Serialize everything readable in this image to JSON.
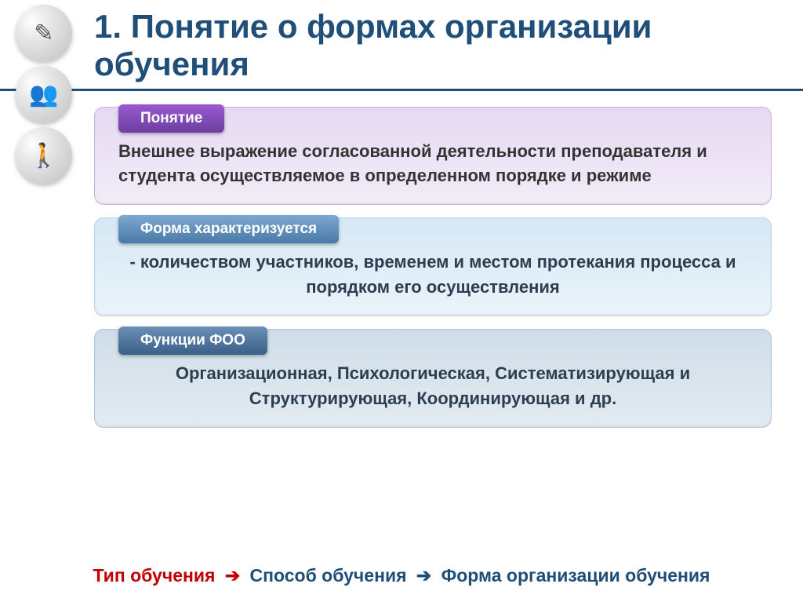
{
  "colors": {
    "title": "#1f4e79",
    "title_underline": "#1f4e79",
    "block1_bg": "#e6d9f2",
    "block1_border": "#c8b3e0",
    "block1_text": "#333333",
    "tab1_bg_top": "#9b59d0",
    "tab1_bg_bottom": "#6b3fa0",
    "block2_bg": "#d6e8f5",
    "block2_border": "#b8d4e8",
    "block2_text": "#2c3e50",
    "tab2_bg_top": "#7da8d0",
    "tab2_bg_bottom": "#4a7aa8",
    "block3_bg": "#d0dde8",
    "block3_border": "#b0c5d8",
    "block3_text": "#2c3e50",
    "tab3_bg_top": "#6a90b8",
    "tab3_bg_bottom": "#3a5f88",
    "bottom_red": "#c00000",
    "bottom_blue": "#1f4e79"
  },
  "title": "1.  Понятие о формах организации обучения",
  "block1": {
    "tab": "Понятие",
    "text": "Внешнее выражение согласованной деятельности преподавателя и студента осуществляемое в определенном порядке и режиме"
  },
  "block2": {
    "tab": "Форма характеризуется",
    "text": "- количеством участников, временем и местом протекания процесса и порядком его осуществления"
  },
  "block3": {
    "tab": "Функции ФОО",
    "text": "Организационная, Психологическая, Систематизирующая и Структурирующая, Координирующая и др."
  },
  "bottom": {
    "part1": "Тип обучения",
    "part2": "Способ обучения",
    "part3": "Форма организации обучения",
    "arrow": "➔"
  },
  "icons": {
    "i1": "✎",
    "i2": "👥",
    "i3": "🚶"
  }
}
